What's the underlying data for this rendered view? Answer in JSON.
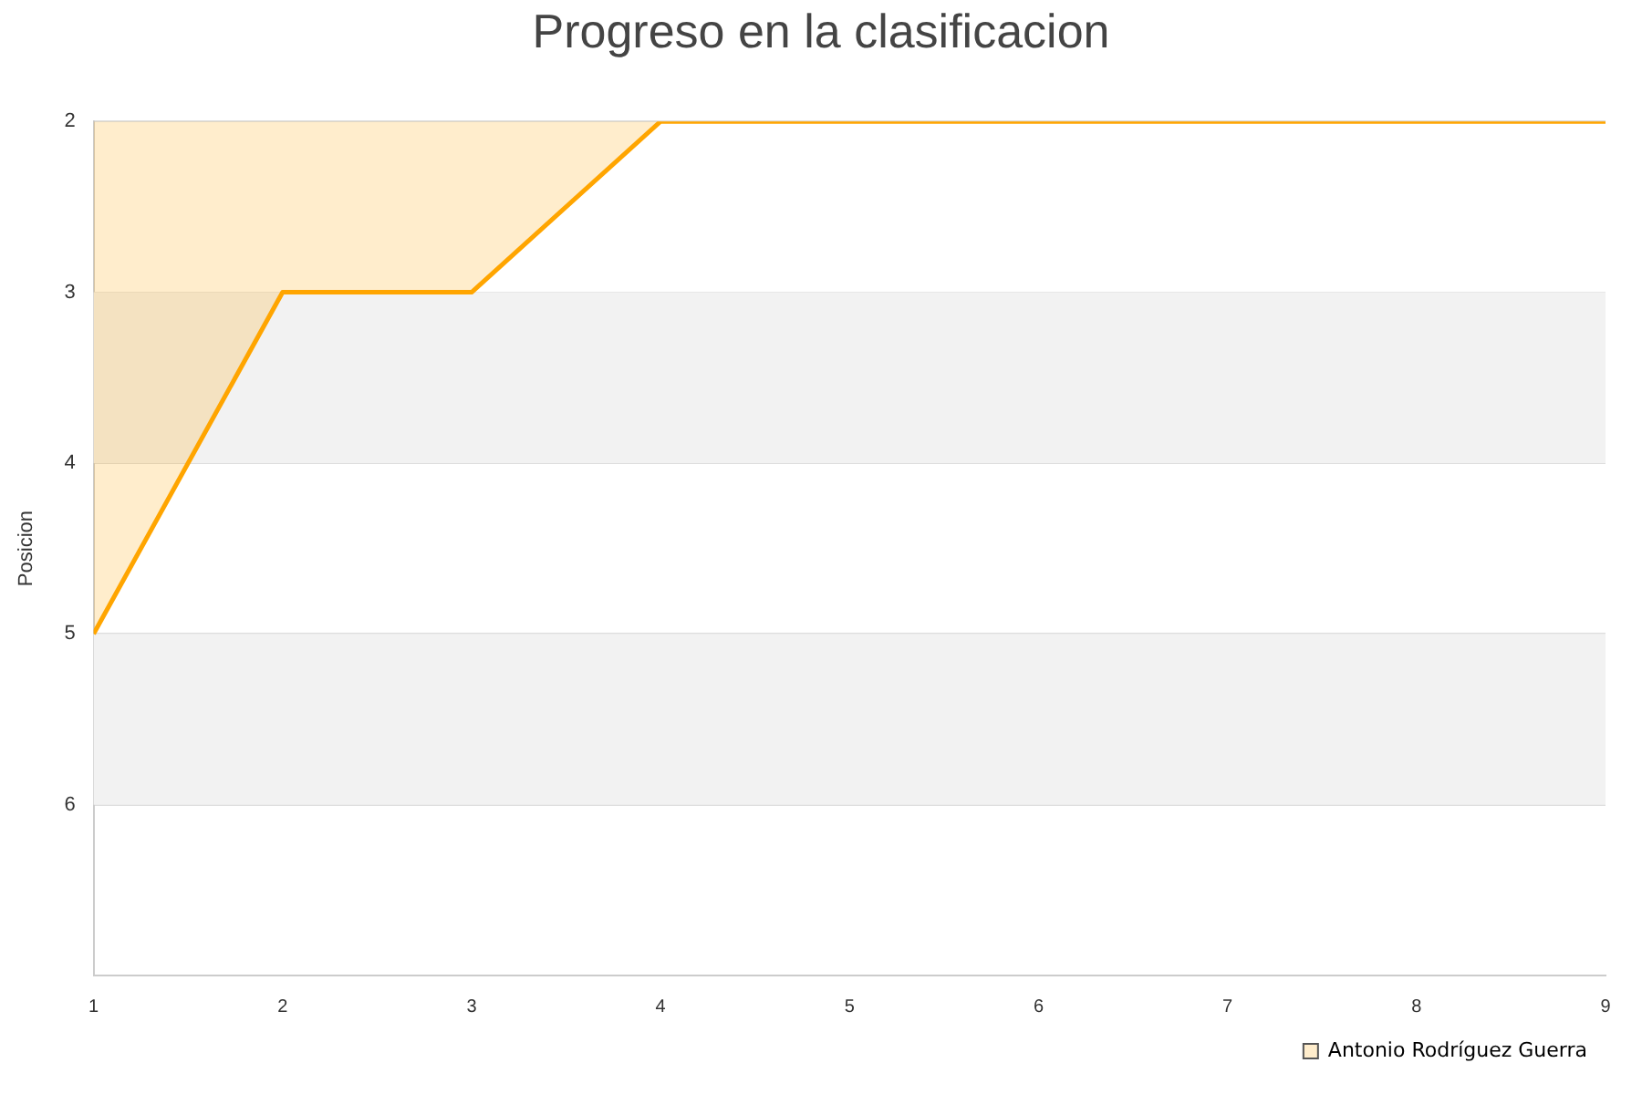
{
  "chart_data": {
    "type": "area",
    "title": "Progreso en la clasificacion",
    "ylabel": "Posicion",
    "x": [
      1,
      2,
      3,
      4,
      5,
      6,
      7,
      8,
      9
    ],
    "series": [
      {
        "name": "Antonio Rodríguez Guerra",
        "color": "#ffa500",
        "values": [
          5,
          3,
          3,
          2,
          2,
          2,
          2,
          2,
          2
        ]
      }
    ],
    "xlim": [
      1,
      9
    ],
    "xticks": [
      1,
      2,
      3,
      4,
      5,
      6,
      7,
      8,
      9
    ],
    "ylim": [
      7,
      2
    ],
    "yticks": [
      2,
      3,
      4,
      5,
      6
    ],
    "bands": [
      {
        "axis": "y",
        "from": 3,
        "to": 4,
        "color": "#f2f2f2"
      },
      {
        "axis": "y",
        "from": 5,
        "to": 6,
        "color": "#f2f2f2"
      }
    ],
    "grid": "y",
    "legend": "bottom right",
    "marker": "none",
    "line_style": "solid"
  }
}
